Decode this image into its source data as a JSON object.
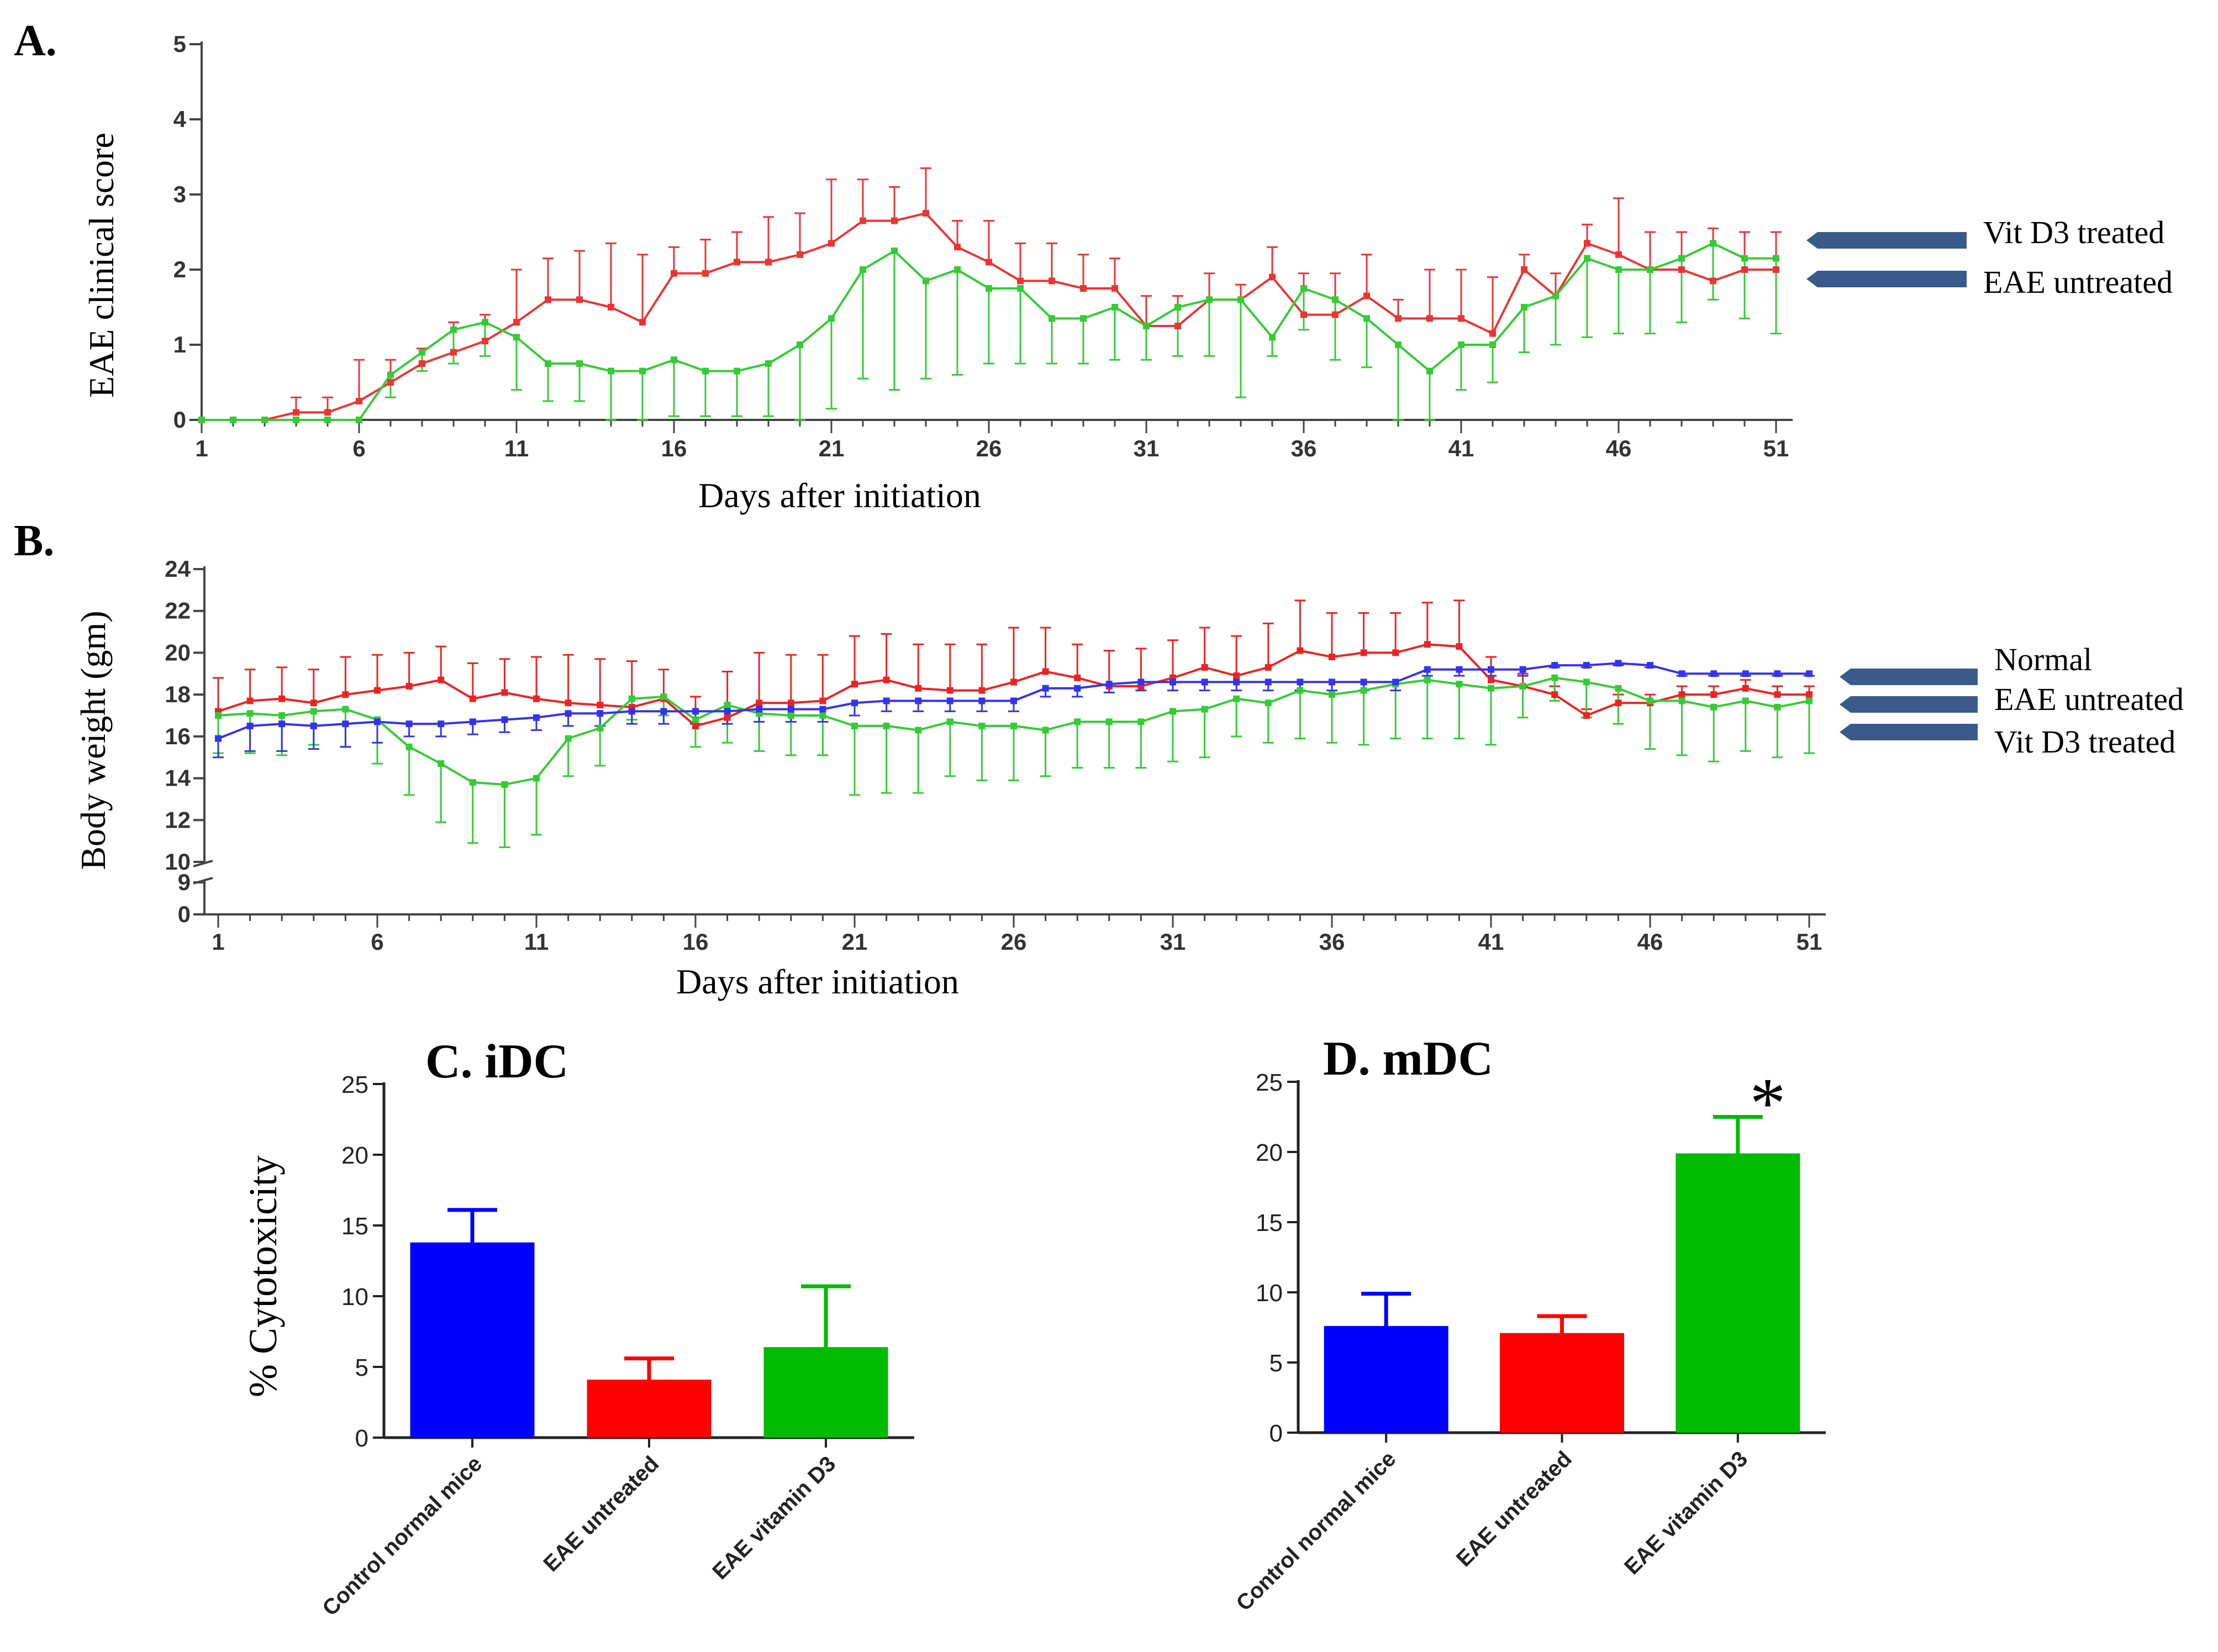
{
  "chart_data": [
    {
      "id": "A",
      "type": "line",
      "panel_label": "A.",
      "title": "",
      "xlabel": "Days after initiation",
      "ylabel": "EAE clinical score",
      "xlim": [
        1,
        51
      ],
      "ylim": [
        0,
        5
      ],
      "x_ticks": [
        1,
        6,
        11,
        16,
        21,
        26,
        31,
        36,
        41,
        46,
        51
      ],
      "y_ticks": [
        0,
        1,
        2,
        3,
        4,
        5
      ],
      "x": [
        1,
        2,
        3,
        4,
        5,
        6,
        7,
        8,
        9,
        10,
        11,
        12,
        13,
        14,
        15,
        16,
        17,
        18,
        19,
        20,
        21,
        22,
        23,
        24,
        25,
        26,
        27,
        28,
        29,
        30,
        31,
        32,
        33,
        34,
        35,
        36,
        37,
        38,
        39,
        40,
        41,
        42,
        43,
        44,
        45,
        46,
        47,
        48,
        49,
        50,
        51
      ],
      "series": [
        {
          "name": "EAE untreated",
          "color": "#ee3333",
          "values": [
            0,
            0,
            0,
            0.1,
            0.1,
            0.25,
            0.5,
            0.75,
            0.9,
            1.05,
            1.3,
            1.6,
            1.6,
            1.5,
            1.3,
            1.95,
            1.95,
            2.1,
            2.1,
            2.2,
            2.35,
            2.65,
            2.65,
            2.75,
            2.3,
            2.1,
            1.85,
            1.85,
            1.75,
            1.75,
            1.25,
            1.25,
            1.6,
            1.6,
            1.9,
            1.4,
            1.4,
            1.65,
            1.35,
            1.35,
            1.35,
            1.15,
            2.0,
            1.65,
            2.35,
            2.2,
            2.0,
            2.0,
            1.85,
            2.0,
            2.0
          ],
          "errors": [
            0,
            0,
            0,
            0.2,
            0.2,
            0.55,
            0.3,
            0.2,
            0.4,
            0.35,
            0.7,
            0.55,
            0.65,
            0.85,
            0.9,
            0.35,
            0.45,
            0.4,
            0.6,
            0.55,
            0.85,
            0.55,
            0.45,
            0.6,
            0.35,
            0.55,
            0.5,
            0.5,
            0.45,
            0.4,
            0.4,
            0.4,
            0.35,
            0.2,
            0.4,
            0.55,
            0.55,
            0.55,
            0.25,
            0.65,
            0.65,
            0.75,
            0.2,
            0.3,
            0.25,
            0.75,
            0.5,
            0.5,
            0.7,
            0.5,
            0.5
          ]
        },
        {
          "name": "Vit D3 treated",
          "color": "#33cc33",
          "values": [
            0,
            0,
            0,
            0,
            0,
            0,
            0.6,
            0.9,
            1.2,
            1.3,
            1.1,
            0.75,
            0.75,
            0.65,
            0.65,
            0.8,
            0.65,
            0.65,
            0.75,
            1.0,
            1.35,
            2.0,
            2.25,
            1.85,
            2.0,
            1.75,
            1.75,
            1.35,
            1.35,
            1.5,
            1.25,
            1.5,
            1.6,
            1.6,
            1.1,
            1.75,
            1.6,
            1.35,
            1.0,
            0.65,
            1.0,
            1.0,
            1.5,
            1.65,
            2.15,
            2.0,
            2.0,
            2.15,
            2.35,
            2.15,
            2.15
          ],
          "errors": [
            0,
            0,
            0,
            0,
            0,
            0,
            0.3,
            0.25,
            0.45,
            0.45,
            0.7,
            0.5,
            0.5,
            0.65,
            0.65,
            0.75,
            0.6,
            0.6,
            0.7,
            1.0,
            1.2,
            1.45,
            1.85,
            1.3,
            1.4,
            1.0,
            1.0,
            0.6,
            0.6,
            0.7,
            0.45,
            0.65,
            0.75,
            1.3,
            0.25,
            0.55,
            0.8,
            0.65,
            1.0,
            0.65,
            0.6,
            0.5,
            0.6,
            0.65,
            1.05,
            0.85,
            0.85,
            0.85,
            0.75,
            0.8,
            1.0
          ]
        }
      ],
      "annotations": [
        {
          "text": "Vit D3 treated",
          "arrow": true
        },
        {
          "text": "EAE untreated",
          "arrow": true
        }
      ]
    },
    {
      "id": "B",
      "type": "line",
      "panel_label": "B.",
      "title": "",
      "xlabel": "Days after initiation",
      "ylabel": "Body weight (gm)",
      "xlim": [
        1,
        51
      ],
      "ylim": [
        10,
        24
      ],
      "broken_axis": {
        "lower_ticks": [
          0,
          9
        ],
        "upper_ticks": [
          10,
          12,
          14,
          16,
          18,
          20,
          22,
          24
        ]
      },
      "x_ticks": [
        1,
        6,
        11,
        16,
        21,
        26,
        31,
        36,
        41,
        46,
        51
      ],
      "x": [
        1,
        2,
        3,
        4,
        5,
        6,
        7,
        8,
        9,
        10,
        11,
        12,
        13,
        14,
        15,
        16,
        17,
        18,
        19,
        20,
        21,
        22,
        23,
        24,
        25,
        26,
        27,
        28,
        29,
        30,
        31,
        32,
        33,
        34,
        35,
        36,
        37,
        38,
        39,
        40,
        41,
        42,
        43,
        44,
        45,
        46,
        47,
        48,
        49,
        50,
        51
      ],
      "series": [
        {
          "name": "EAE untreated",
          "color": "#ee2222",
          "values": [
            17.2,
            17.7,
            17.8,
            17.6,
            18.0,
            18.2,
            18.4,
            18.7,
            17.8,
            18.1,
            17.8,
            17.6,
            17.5,
            17.4,
            17.8,
            16.5,
            16.9,
            17.6,
            17.6,
            17.7,
            18.5,
            18.7,
            18.3,
            18.2,
            18.2,
            18.6,
            19.1,
            18.8,
            18.4,
            18.4,
            18.8,
            19.3,
            18.9,
            19.3,
            20.1,
            19.8,
            20.0,
            20.0,
            20.4,
            20.3,
            18.7,
            18.4,
            18.0,
            17.0,
            17.6,
            17.6,
            18.0,
            18.0,
            18.3,
            18.0,
            18.0
          ],
          "errors": [
            1.6,
            1.5,
            1.5,
            1.6,
            1.8,
            1.7,
            1.6,
            1.6,
            1.7,
            1.6,
            2.0,
            2.3,
            2.2,
            2.2,
            1.4,
            1.4,
            2.2,
            2.4,
            2.3,
            2.2,
            2.3,
            2.2,
            2.1,
            2.2,
            2.2,
            2.6,
            2.1,
            1.6,
            1.7,
            1.8,
            1.8,
            1.9,
            1.9,
            2.1,
            2.4,
            2.1,
            1.9,
            1.9,
            2.0,
            2.2,
            1.1,
            0.6,
            0.4,
            0.3,
            0.4,
            0.4,
            0.4,
            0.4,
            0.4,
            0.4,
            0.4
          ]
        },
        {
          "name": "Vit D3 treated",
          "color": "#33cc33",
          "values": [
            17.0,
            17.1,
            17.0,
            17.2,
            17.3,
            16.8,
            15.5,
            14.7,
            13.8,
            13.7,
            14.0,
            15.9,
            16.4,
            17.8,
            17.9,
            16.8,
            17.5,
            17.1,
            17.0,
            17.0,
            16.5,
            16.5,
            16.3,
            16.7,
            16.5,
            16.5,
            16.3,
            16.7,
            16.7,
            16.7,
            17.2,
            17.3,
            17.8,
            17.6,
            18.2,
            18.0,
            18.2,
            18.5,
            18.7,
            18.5,
            18.3,
            18.4,
            18.8,
            18.6,
            18.3,
            17.7,
            17.7,
            17.4,
            17.7,
            17.4,
            17.7
          ],
          "errors": [
            1.8,
            1.9,
            1.9,
            1.6,
            1.8,
            2.1,
            2.3,
            2.8,
            2.9,
            3.0,
            2.7,
            1.8,
            1.8,
            1.0,
            0.9,
            1.3,
            1.8,
            1.8,
            1.9,
            1.9,
            3.3,
            3.2,
            3.0,
            2.6,
            2.6,
            2.6,
            2.2,
            2.2,
            2.2,
            2.2,
            2.4,
            2.3,
            1.8,
            1.9,
            2.3,
            2.3,
            2.6,
            2.6,
            2.8,
            2.6,
            2.7,
            1.5,
            1.1,
            1.7,
            1.7,
            2.3,
            2.6,
            2.6,
            2.4,
            2.4,
            2.5
          ]
        },
        {
          "name": "Normal",
          "color": "#3333ee",
          "values": [
            15.9,
            16.5,
            16.6,
            16.5,
            16.6,
            16.7,
            16.6,
            16.6,
            16.7,
            16.8,
            16.9,
            17.1,
            17.1,
            17.2,
            17.2,
            17.2,
            17.2,
            17.3,
            17.3,
            17.3,
            17.6,
            17.7,
            17.7,
            17.7,
            17.7,
            17.7,
            18.3,
            18.3,
            18.5,
            18.6,
            18.6,
            18.6,
            18.6,
            18.6,
            18.6,
            18.6,
            18.6,
            18.6,
            19.2,
            19.2,
            19.2,
            19.2,
            19.4,
            19.4,
            19.5,
            19.4,
            19.0,
            19.0,
            19.0,
            19.0,
            19.0
          ],
          "errors": [
            0.9,
            1.2,
            1.3,
            1.1,
            1.1,
            1.0,
            0.6,
            0.6,
            0.6,
            0.6,
            0.6,
            0.6,
            0.6,
            0.6,
            0.6,
            0.6,
            0.6,
            0.6,
            0.6,
            0.6,
            0.6,
            0.5,
            0.5,
            0.5,
            0.5,
            0.5,
            0.4,
            0.4,
            0.4,
            0.4,
            0.4,
            0.4,
            0.4,
            0.4,
            0.4,
            0.4,
            0.4,
            0.4,
            0.3,
            0.3,
            0.3,
            0.3,
            0.1,
            0.1,
            0.1,
            0.1,
            0.1,
            0.1,
            0.1,
            0.1,
            0.1
          ]
        }
      ],
      "annotations": [
        {
          "text": "Normal",
          "arrow": true
        },
        {
          "text": "EAE untreated",
          "arrow": true
        },
        {
          "text": "Vit D3 treated",
          "arrow": true
        }
      ]
    },
    {
      "id": "C",
      "type": "bar",
      "title": "C. iDC",
      "xlabel": "",
      "ylabel": "% Cytotoxicity",
      "ylim": [
        0,
        25
      ],
      "y_ticks": [
        0,
        5,
        10,
        15,
        20,
        25
      ],
      "categories": [
        "Control normal mice",
        "EAE untreated",
        "EAE vitamin D3"
      ],
      "values": [
        13.8,
        4.1,
        6.4
      ],
      "errors": [
        2.3,
        1.5,
        4.3
      ],
      "colors": [
        "#0000ff",
        "#ff0000",
        "#00bb00"
      ]
    },
    {
      "id": "D",
      "type": "bar",
      "title": "D. mDC",
      "xlabel": "",
      "ylabel": "",
      "ylim": [
        0,
        25
      ],
      "y_ticks": [
        0,
        5,
        10,
        15,
        20,
        25
      ],
      "categories": [
        "Control normal mice",
        "EAE untreated",
        "EAE vitamin D3"
      ],
      "values": [
        7.6,
        7.1,
        19.9
      ],
      "errors": [
        2.3,
        1.2,
        2.6
      ],
      "colors": [
        "#0000ff",
        "#ff0000",
        "#00bb00"
      ],
      "significance": "*"
    }
  ]
}
